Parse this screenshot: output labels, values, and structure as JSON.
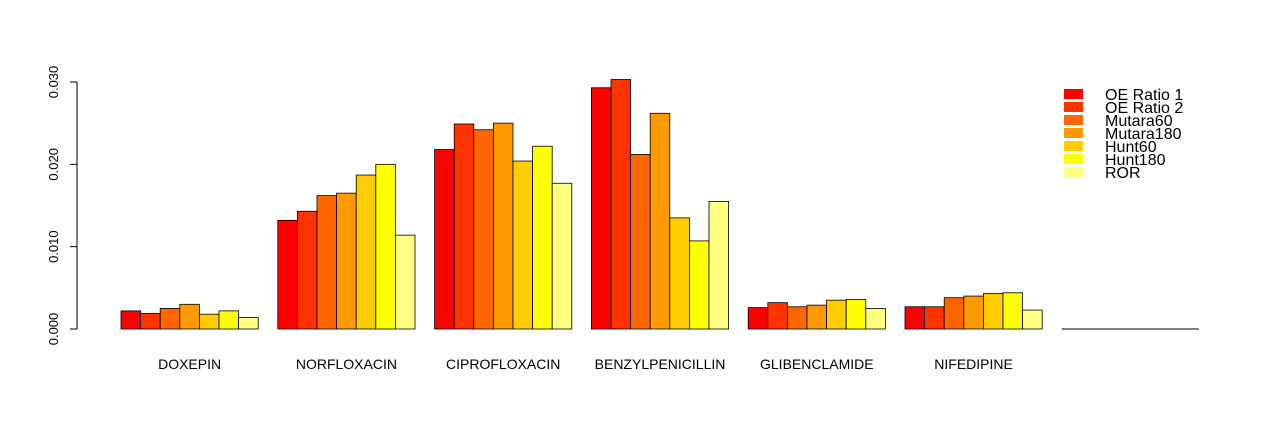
{
  "chart_data": {
    "type": "bar",
    "categories": [
      "DOXEPIN",
      "NORFLOXACIN",
      "CIPROFLOXACIN",
      "BENZYLPENICILLIN",
      "GLIBENCLAMIDE",
      "NIFEDIPINE"
    ],
    "series": [
      {
        "name": "OE Ratio 1",
        "color": "#ff0000",
        "values": [
          0.0022,
          0.0132,
          0.0218,
          0.0293,
          0.0026,
          0.0027
        ]
      },
      {
        "name": "OE Ratio 2",
        "color": "#ff3300",
        "values": [
          0.0019,
          0.0143,
          0.0249,
          0.0303,
          0.0032,
          0.0027
        ]
      },
      {
        "name": "Mutara60",
        "color": "#ff6600",
        "values": [
          0.0025,
          0.0162,
          0.0242,
          0.0212,
          0.0027,
          0.0038
        ]
      },
      {
        "name": "Mutara180",
        "color": "#ff9900",
        "values": [
          0.003,
          0.0165,
          0.025,
          0.0262,
          0.0029,
          0.004
        ]
      },
      {
        "name": "Hunt60",
        "color": "#ffcc00",
        "values": [
          0.0018,
          0.0187,
          0.0204,
          0.0135,
          0.0035,
          0.0043
        ]
      },
      {
        "name": "Hunt180",
        "color": "#ffff00",
        "values": [
          0.0022,
          0.02,
          0.0222,
          0.0107,
          0.0036,
          0.0044
        ]
      },
      {
        "name": "ROR",
        "color": "#ffff80",
        "values": [
          0.0014,
          0.0114,
          0.0177,
          0.0155,
          0.0025,
          0.0023
        ]
      }
    ],
    "ylim": [
      0,
      0.03
    ],
    "yticks": [
      "0.000",
      "0.010",
      "0.020",
      "0.030"
    ],
    "legend_position": "top-right",
    "grid": false
  }
}
